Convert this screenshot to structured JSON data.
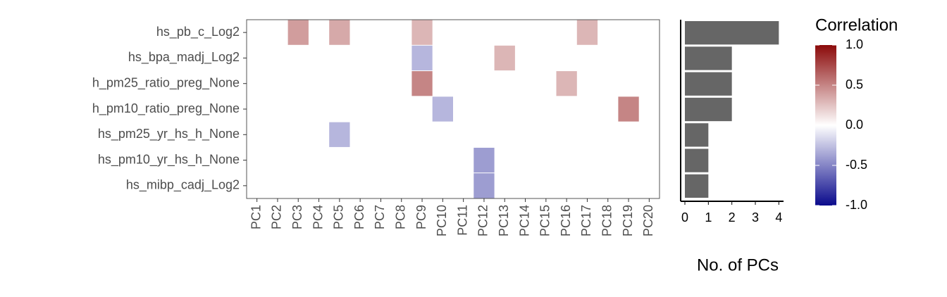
{
  "chart_data": [
    {
      "type": "heatmap",
      "x": [
        "PC1",
        "PC2",
        "PC3",
        "PC4",
        "PC5",
        "PC6",
        "PC7",
        "PC8",
        "PC9",
        "PC10",
        "PC11",
        "PC12",
        "PC13",
        "PC14",
        "PC15",
        "PC16",
        "PC17",
        "PC18",
        "PC19",
        "PC20"
      ],
      "y": [
        "hs_pb_c_Log2",
        "hs_bpa_madj_Log2",
        "h_pm25_ratio_preg_None",
        "h_pm10_ratio_preg_None",
        "hs_pm25_yr_hs_h_None",
        "hs_pm10_yr_hs_h_None",
        "hs_mibp_cadj_Log2"
      ],
      "values": [
        [
          null,
          null,
          0.4,
          null,
          0.35,
          null,
          null,
          null,
          0.3,
          null,
          null,
          null,
          null,
          null,
          null,
          null,
          0.3,
          null,
          null,
          null
        ],
        [
          null,
          null,
          null,
          null,
          null,
          null,
          null,
          null,
          -0.3,
          null,
          null,
          null,
          0.3,
          null,
          null,
          null,
          null,
          null,
          null,
          null
        ],
        [
          null,
          null,
          null,
          null,
          null,
          null,
          null,
          null,
          0.5,
          null,
          null,
          null,
          null,
          null,
          null,
          0.3,
          null,
          null,
          null,
          null
        ],
        [
          null,
          null,
          null,
          null,
          null,
          null,
          null,
          null,
          null,
          -0.3,
          null,
          null,
          null,
          null,
          null,
          null,
          null,
          null,
          0.5,
          null
        ],
        [
          null,
          null,
          null,
          null,
          -0.3,
          null,
          null,
          null,
          null,
          null,
          null,
          null,
          null,
          null,
          null,
          null,
          null,
          null,
          null,
          null
        ],
        [
          null,
          null,
          null,
          null,
          null,
          null,
          null,
          null,
          null,
          null,
          null,
          -0.4,
          null,
          null,
          null,
          null,
          null,
          null,
          null,
          null
        ],
        [
          null,
          null,
          null,
          null,
          null,
          null,
          null,
          null,
          null,
          null,
          null,
          -0.4,
          null,
          null,
          null,
          null,
          null,
          null,
          null,
          null
        ]
      ],
      "colorbar": {
        "title": "Correlation",
        "range": [
          -1,
          1
        ],
        "low": "#0a0a8c",
        "mid": "#ffffff",
        "high": "#8b0a0a",
        "ticks": [
          {
            "value": 1,
            "label": "1.0"
          },
          {
            "value": 0.5,
            "label": "0.5"
          },
          {
            "value": 0,
            "label": "0.0"
          },
          {
            "value": -0.5,
            "label": "-0.5"
          },
          {
            "value": -1,
            "label": "-1.0"
          }
        ]
      }
    },
    {
      "type": "bar",
      "orientation": "horizontal",
      "values": [
        4,
        2,
        2,
        2,
        1,
        1,
        1
      ],
      "color": "#666666",
      "xlabel": "No. of PCs",
      "xlim": [
        -0.18,
        4.2
      ],
      "xticks": [
        0,
        1,
        2,
        3,
        4
      ]
    }
  ]
}
